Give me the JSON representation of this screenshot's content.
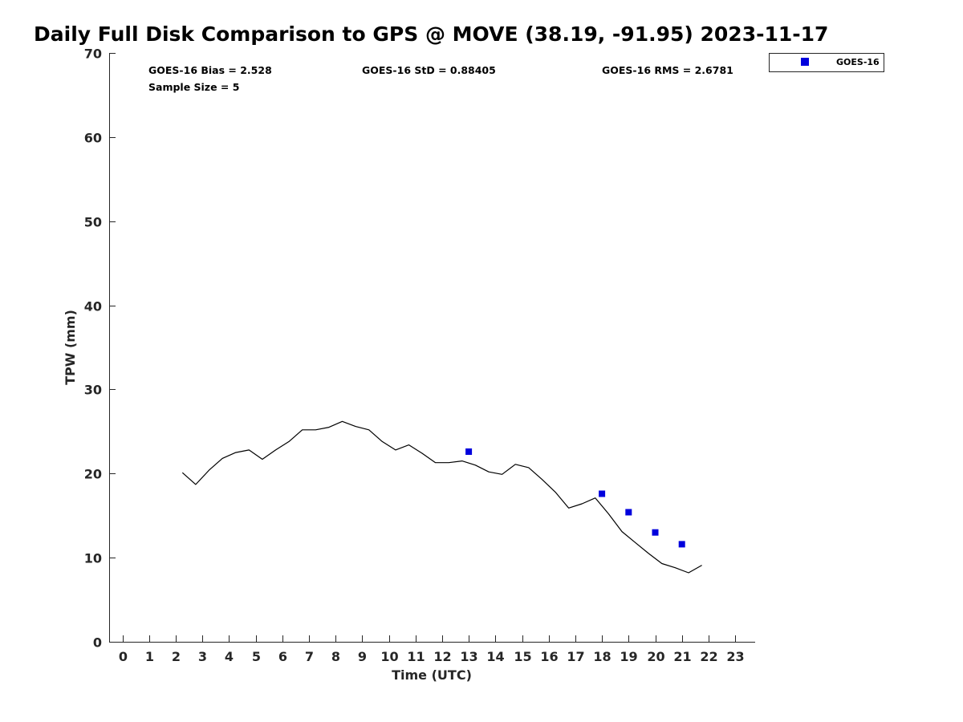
{
  "chart_data": {
    "type": "line",
    "title": "Daily Full Disk Comparison to GPS @ MOVE (38.19, -91.95) 2023-11-17",
    "xlabel": "Time (UTC)",
    "ylabel": "TPW (mm)",
    "xlim": [
      -0.5,
      23.75
    ],
    "ylim": [
      0,
      70
    ],
    "x_ticks": [
      0,
      1,
      2,
      3,
      4,
      5,
      6,
      7,
      8,
      9,
      10,
      11,
      12,
      13,
      14,
      15,
      16,
      17,
      18,
      19,
      20,
      21,
      22,
      23
    ],
    "y_ticks": [
      0,
      10,
      20,
      30,
      40,
      50,
      60,
      70
    ],
    "grid": false,
    "legend_position": "outside top-right",
    "stats": {
      "bias": "GOES-16 Bias = 2.528",
      "std": "GOES-16 StD = 0.88405",
      "rms": "GOES-16 RMS = 2.6781",
      "sample": "Sample Size = 5"
    },
    "series": [
      {
        "kind": "line",
        "color": "#000000",
        "x": [
          2.25,
          2.75,
          3.25,
          3.75,
          4.25,
          4.75,
          5.25,
          5.75,
          6.25,
          6.75,
          7.25,
          7.75,
          8.25,
          8.75,
          9.25,
          9.75,
          10.25,
          10.75,
          11.25,
          11.75,
          12.25,
          12.75,
          13.25,
          13.75,
          14.25,
          14.75,
          15.25,
          15.75,
          16.25,
          16.75,
          17.25,
          17.75,
          18.25,
          18.75,
          19.25,
          19.75,
          20.25,
          20.75,
          21.25,
          21.75
        ],
        "y": [
          20.1,
          18.7,
          20.4,
          21.8,
          22.5,
          22.8,
          21.7,
          22.8,
          23.8,
          25.2,
          25.2,
          25.5,
          26.2,
          25.6,
          25.2,
          23.8,
          22.8,
          23.4,
          22.4,
          21.3,
          21.3,
          21.5,
          21.0,
          20.2,
          19.9,
          21.1,
          20.7,
          19.3,
          17.8,
          15.9,
          16.4,
          17.1,
          15.2,
          13.1,
          11.8,
          10.5,
          9.3,
          8.8,
          8.2,
          9.1
        ]
      },
      {
        "kind": "scatter",
        "name": "GOES-16",
        "color": "#0000dd",
        "x": [
          13,
          18,
          19,
          20,
          21
        ],
        "y": [
          22.6,
          17.6,
          15.4,
          13.0,
          11.6
        ]
      }
    ]
  }
}
